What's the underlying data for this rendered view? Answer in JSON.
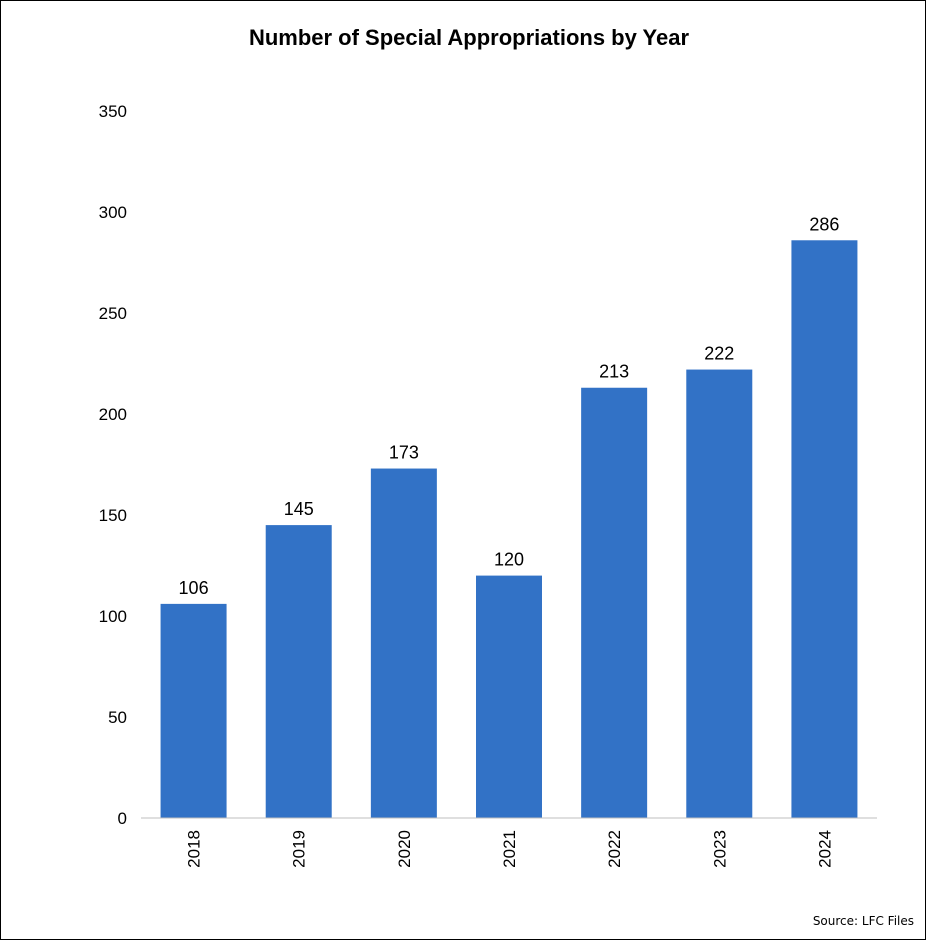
{
  "chart_data": {
    "type": "bar",
    "title": "Number of Special Appropriations by Year",
    "categories": [
      "2018",
      "2019",
      "2020",
      "2021",
      "2022",
      "2023",
      "2024"
    ],
    "values": [
      106,
      145,
      173,
      120,
      213,
      222,
      286
    ],
    "data_labels": [
      "106",
      "145",
      "173",
      "120",
      "213",
      "222",
      "286"
    ],
    "y_ticks": [
      0,
      50,
      100,
      150,
      200,
      250,
      300,
      350
    ],
    "ylim": [
      0,
      350
    ],
    "grid": false,
    "legend": "none",
    "bar_color": "#3272C6"
  },
  "source": "Source: LFC Files"
}
